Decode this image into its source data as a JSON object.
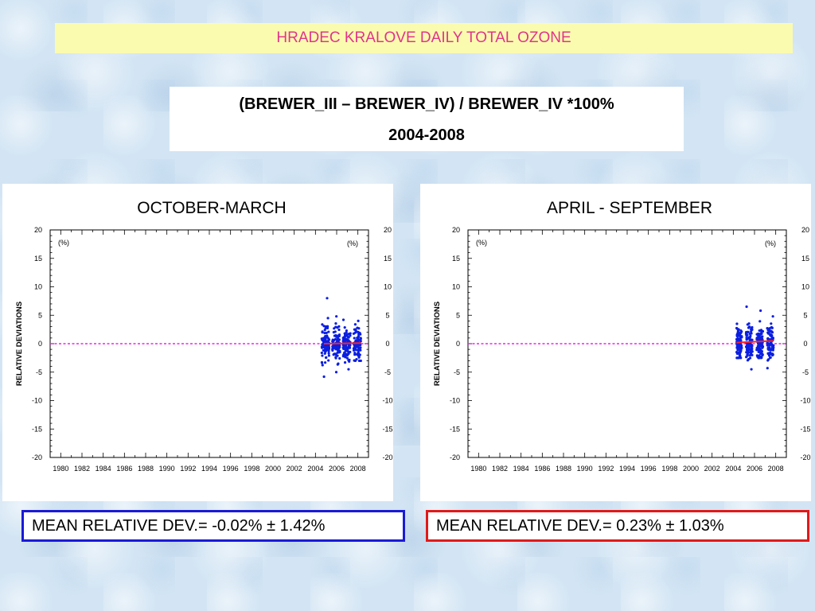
{
  "header": {
    "title": "HRADEC KRALOVE DAILY TOTAL OZONE",
    "subtitle_line1": "(BREWER_III – BREWER_IV) / BREWER_IV *100%",
    "subtitle_line2": "2004-2008"
  },
  "mean_left": "MEAN RELATIVE DEV.= -0.02% ± 1.42%",
  "mean_right": "MEAN RELATIVE DEV.= 0.23% ± 1.03%",
  "colors": {
    "points": "#0b1fe0",
    "zero_line": "#ee22ee",
    "trend": "#ff2020",
    "title_text": "#e0348a",
    "title_bg": "#fbfbb0"
  },
  "chart_data": [
    {
      "type": "scatter",
      "title": "OCTOBER-MARCH",
      "ylabel": "RELATIVE DEVIATIONS",
      "unit_left": "(%)",
      "unit_right": "(%)",
      "xlim": [
        1979,
        2009
      ],
      "ylim": [
        -20,
        20
      ],
      "x_ticks": [
        1980,
        1982,
        1984,
        1986,
        1988,
        1990,
        1992,
        1994,
        1996,
        1998,
        2000,
        2002,
        2004,
        2006,
        2008
      ],
      "y_ticks": [
        20,
        15,
        10,
        5,
        0,
        -5,
        -10,
        -15,
        -20
      ],
      "grid": false,
      "reference_line_y": 0,
      "trend": {
        "x": [
          2004.8,
          2008.3
        ],
        "y": [
          0.0,
          0.1
        ]
      },
      "clusters": [
        {
          "x_range": [
            2004.6,
            2005.3
          ],
          "y_range": [
            -5.8,
            8.0
          ]
        },
        {
          "x_range": [
            2005.6,
            2006.3
          ],
          "y_range": [
            -5.0,
            4.8
          ]
        },
        {
          "x_range": [
            2006.6,
            2007.3
          ],
          "y_range": [
            -4.5,
            4.2
          ]
        },
        {
          "x_range": [
            2007.6,
            2008.3
          ],
          "y_range": [
            -3.0,
            4.0
          ]
        }
      ]
    },
    {
      "type": "scatter",
      "title": "APRIL - SEPTEMBER",
      "ylabel": "RELATIVE DEVIATIONS",
      "unit_left": "(%)",
      "unit_right": "(%)",
      "xlim": [
        1979,
        2009
      ],
      "ylim": [
        -20,
        20
      ],
      "x_ticks": [
        1980,
        1982,
        1984,
        1986,
        1988,
        1990,
        1992,
        1994,
        1996,
        1998,
        2000,
        2002,
        2004,
        2006,
        2008
      ],
      "y_ticks": [
        20,
        15,
        10,
        5,
        0,
        -5,
        -10,
        -15,
        -20
      ],
      "grid": false,
      "reference_line_y": 0,
      "trend": {
        "x": [
          2004.3,
          2007.8
        ],
        "y": [
          0.2,
          0.5
        ]
      },
      "clusters": [
        {
          "x_range": [
            2004.3,
            2004.8
          ],
          "y_range": [
            -2.5,
            3.5
          ]
        },
        {
          "x_range": [
            2005.2,
            2005.8
          ],
          "y_range": [
            -4.5,
            6.5
          ]
        },
        {
          "x_range": [
            2006.2,
            2006.8
          ],
          "y_range": [
            -2.5,
            5.8
          ]
        },
        {
          "x_range": [
            2007.2,
            2007.8
          ],
          "y_range": [
            -4.3,
            4.8
          ]
        }
      ]
    }
  ]
}
